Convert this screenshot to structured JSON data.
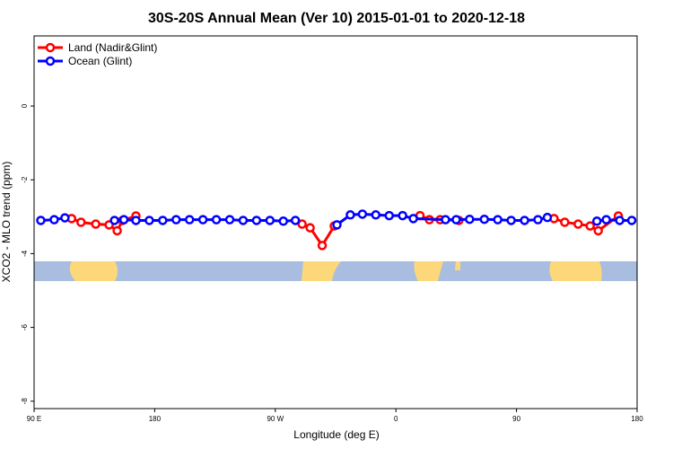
{
  "chart_data": {
    "type": "line",
    "title": "30S-20S Annual Mean (Ver 10)   2015-01-01 to 2020-12-18",
    "x_label": "Longitude (deg E)",
    "y_label": "XCO2 - MLO trend (ppm)",
    "xlim": [
      90,
      540
    ],
    "xticks": [
      {
        "value": 90,
        "label": "90 E"
      },
      180,
      {
        "value": 270,
        "label": "90 W"
      },
      {
        "value": 360,
        "label": "0"
      },
      {
        "value": 450,
        "label": "90"
      },
      {
        "value": 540,
        "label": "180"
      }
    ],
    "ylim": [
      -8.2,
      1.9
    ],
    "yticks": [
      0,
      -2,
      -4,
      -6,
      -8
    ],
    "legend": "top-left",
    "series": [
      {
        "name": "Land (Nadir&Glint)",
        "color": "#ff0000",
        "x": [
          118,
          125,
          136,
          146,
          152,
          156,
          166,
          null,
          290,
          296,
          305,
          314,
          null,
          378,
          385,
          393,
          407,
          null,
          478,
          486,
          496,
          505,
          511,
          526
        ],
        "values": [
          -3.05,
          -3.15,
          -3.2,
          -3.22,
          -3.38,
          -3.1,
          -2.98,
          null,
          -3.2,
          -3.3,
          -3.78,
          -3.25,
          null,
          -2.97,
          -3.08,
          -3.08,
          -3.1,
          null,
          -3.05,
          -3.15,
          -3.2,
          -3.25,
          -3.38,
          -2.98
        ]
      },
      {
        "name": "Ocean (Glint)",
        "color": "#0000ff",
        "x": [
          95,
          105,
          113,
          null,
          150,
          157,
          166,
          176,
          186,
          196,
          206,
          216,
          226,
          236,
          246,
          256,
          266,
          276,
          285,
          null,
          316,
          326,
          335,
          345,
          355,
          365,
          373,
          397,
          405,
          415,
          426,
          436,
          446,
          456,
          466,
          473,
          null,
          510,
          517,
          527,
          536
        ],
        "values": [
          -3.1,
          -3.08,
          -3.03,
          null,
          -3.1,
          -3.08,
          -3.1,
          -3.1,
          -3.1,
          -3.08,
          -3.08,
          -3.08,
          -3.08,
          -3.08,
          -3.1,
          -3.1,
          -3.1,
          -3.12,
          -3.1,
          null,
          -3.22,
          -2.95,
          -2.93,
          -2.95,
          -2.97,
          -2.97,
          -3.05,
          -3.08,
          -3.08,
          -3.07,
          -3.07,
          -3.08,
          -3.1,
          -3.1,
          -3.08,
          -3.02,
          null,
          -3.12,
          -3.08,
          -3.1,
          -3.1
        ]
      }
    ]
  }
}
